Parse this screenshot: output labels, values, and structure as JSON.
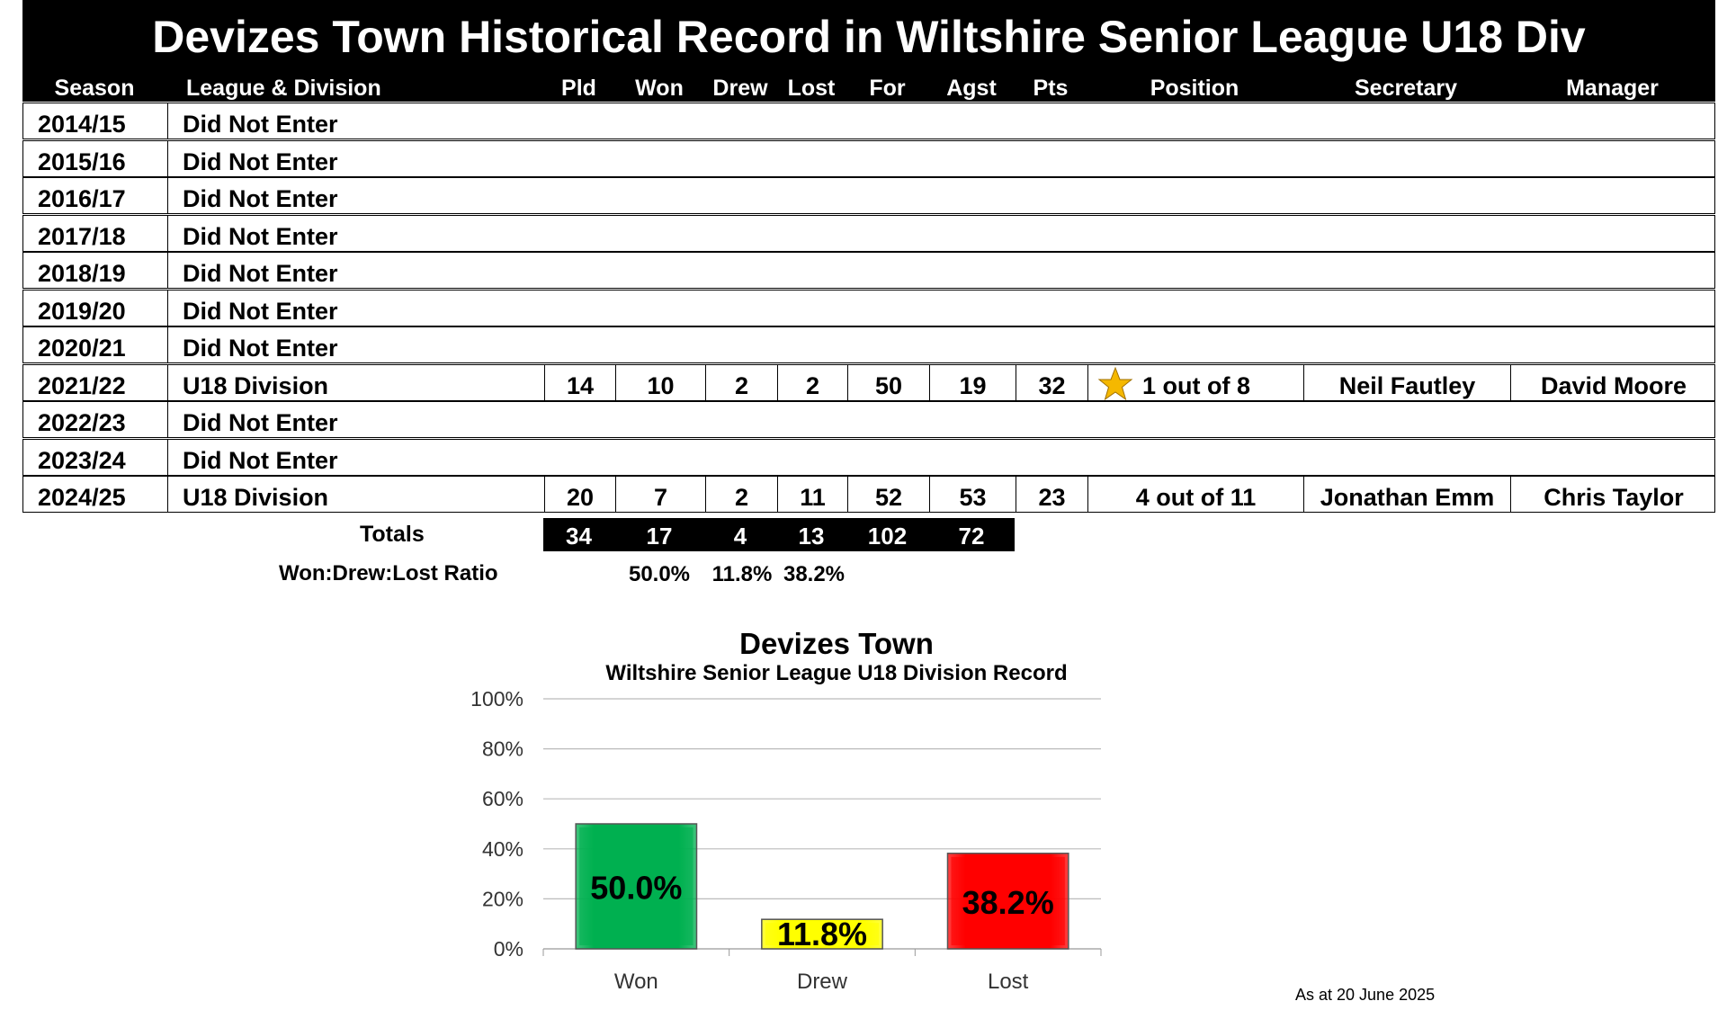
{
  "title": "Devizes Town Historical Record in Wiltshire Senior League U18 Div",
  "headers": [
    "Season",
    "League & Division",
    "Pld",
    "Won",
    "Drew",
    "Lost",
    "For",
    "Agst",
    "Pts",
    "Position",
    "Secretary",
    "Manager"
  ],
  "rows": [
    {
      "season": "2014/15",
      "league": "Did Not Enter"
    },
    {
      "season": "2015/16",
      "league": "Did Not Enter"
    },
    {
      "season": "2016/17",
      "league": "Did Not Enter"
    },
    {
      "season": "2017/18",
      "league": "Did Not Enter"
    },
    {
      "season": "2018/19",
      "league": "Did Not Enter"
    },
    {
      "season": "2019/20",
      "league": "Did Not Enter"
    },
    {
      "season": "2020/21",
      "league": "Did Not Enter"
    },
    {
      "season": "2021/22",
      "league": "U18 Division",
      "pld": "14",
      "won": "10",
      "drew": "2",
      "lost": "2",
      "for": "50",
      "agst": "19",
      "pts": "32",
      "position": "1 out of 8",
      "champion": true,
      "secretary": "Neil Fautley",
      "manager": "David Moore"
    },
    {
      "season": "2022/23",
      "league": "Did Not Enter"
    },
    {
      "season": "2023/24",
      "league": "Did Not Enter"
    },
    {
      "season": "2024/25",
      "league": "U18 Division",
      "pld": "20",
      "won": "7",
      "drew": "2",
      "lost": "11",
      "for": "52",
      "agst": "53",
      "pts": "23",
      "position": "4 out of 11",
      "champion": false,
      "secretary": "Jonathan Emm",
      "manager": "Chris Taylor"
    }
  ],
  "totals": {
    "label": "Totals",
    "pld": "34",
    "won": "17",
    "drew": "4",
    "lost": "13",
    "for": "102",
    "agst": "72"
  },
  "ratio": {
    "label": "Won:Drew:Lost Ratio",
    "won": "50.0%",
    "drew": "11.8%",
    "lost": "38.2%"
  },
  "icons": {
    "champion": "star-icon"
  },
  "colors": {
    "header_bg": "#000000",
    "won": "#00B050",
    "drew": "#FFFF00",
    "lost": "#FF0000",
    "star": "#F5B800"
  },
  "chart_data": {
    "type": "bar",
    "title": "Devizes Town",
    "subtitle": "Wiltshire Senior League U18 Division Record",
    "categories": [
      "Won",
      "Drew",
      "Lost"
    ],
    "values": [
      50.0,
      11.8,
      38.2
    ],
    "data_labels": [
      "50.0%",
      "11.8%",
      "38.2%"
    ],
    "colors": [
      "#00B050",
      "#FFFF00",
      "#FF0000"
    ],
    "ylim": [
      0,
      100
    ],
    "yticks": [
      "0%",
      "20%",
      "40%",
      "60%",
      "80%",
      "100%"
    ],
    "grid": true,
    "xlabel": "",
    "ylabel": ""
  },
  "as_at": "As at 20 June 2025"
}
